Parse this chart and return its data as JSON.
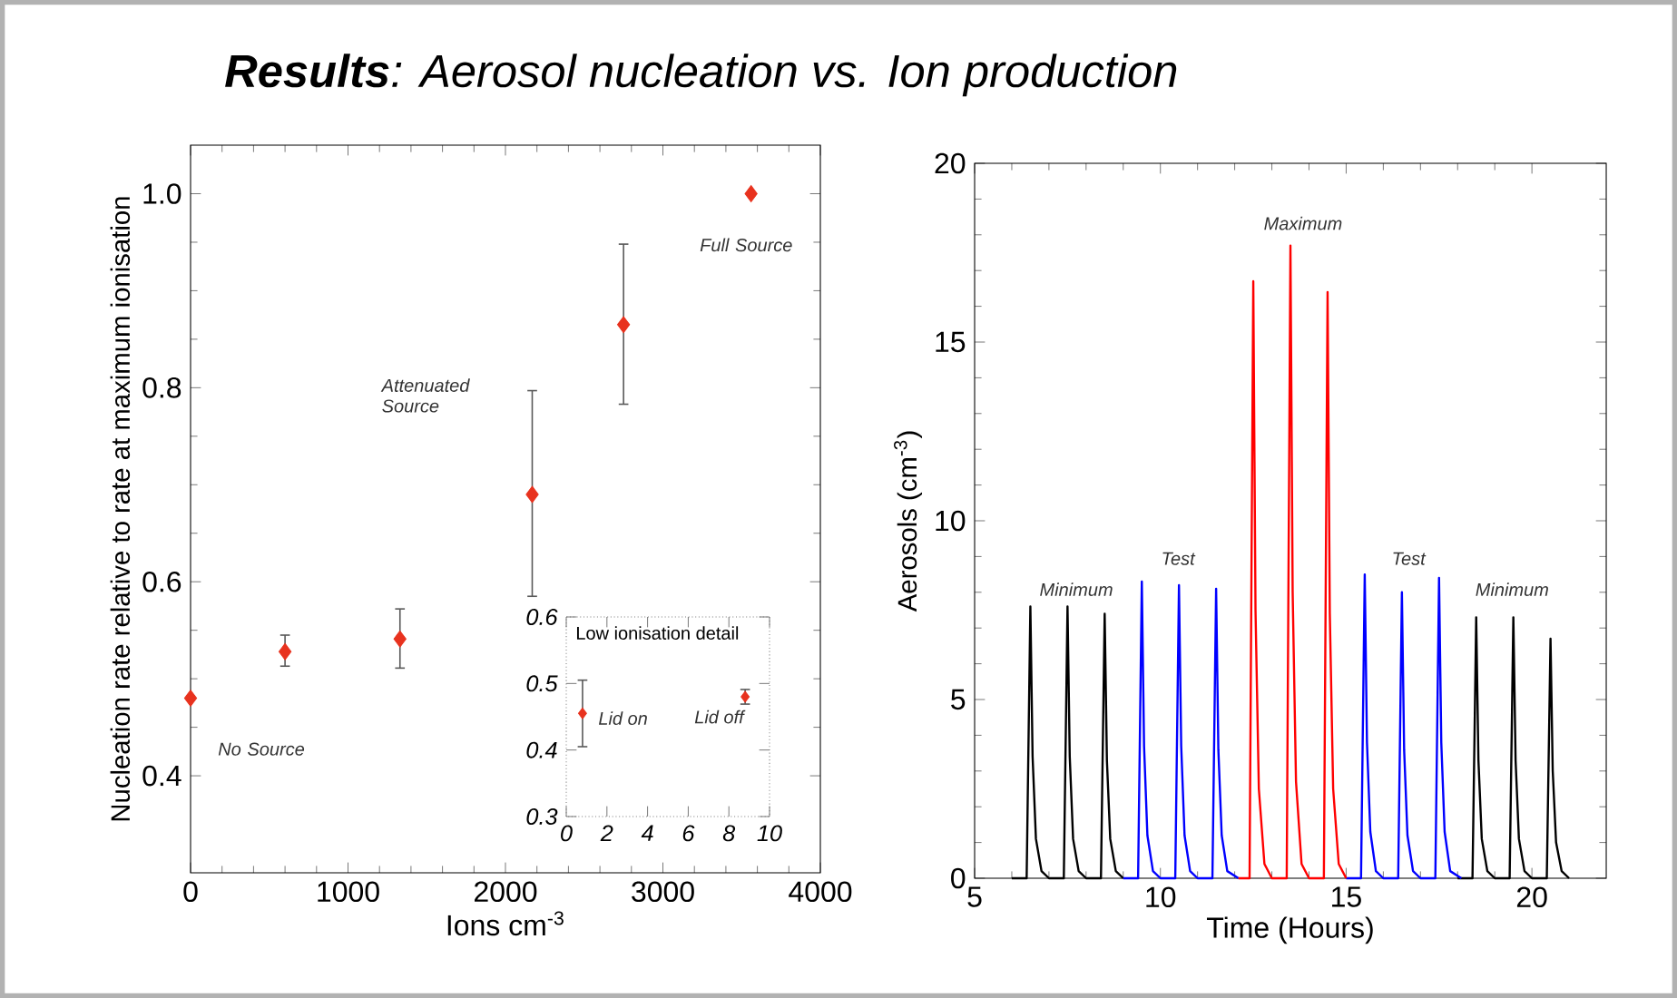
{
  "chart_data": [
    {
      "type": "scatter",
      "title": "**Results**: Aerosol nucleation vs. Ion production",
      "xlabel": "Ions cm$^{-3}$",
      "ylabel": "Nucleation rate relative to rate at maximum ionisation",
      "xlim": [
        0,
        4000
      ],
      "xticks": [
        0,
        1000,
        2000,
        3000,
        4000
      ],
      "ylim": [
        0.3,
        1.05
      ],
      "yticks": [
        {
          "value": 0.4,
          "label": "0.4"
        },
        {
          "value": 0.6,
          "label": "0.6"
        },
        {
          "value": 0.8,
          "label": "0.8"
        },
        {
          "value": 1.0,
          "label": "1.0"
        }
      ],
      "marker": "diamond",
      "series": [
        {
          "color": "#e8321e",
          "x": [
            0,
            600,
            1330,
            2170,
            2750
          ],
          "values": [
            0.48,
            0.528,
            0.541,
            0.69,
            0.865
          ],
          "errors": [
            null,
            [
              0.513,
              0.545
            ],
            [
              0.511,
              0.572
            ],
            [
              0.585,
              0.797
            ],
            [
              0.783,
              0.948
            ]
          ]
        },
        {
          "color": "#e8321e",
          "x": [
            3560
          ],
          "values": [
            1.0
          ]
        }
      ],
      "annotations": [
        "No Source",
        "Attenuated Source",
        "Full Source"
      ]
    },
    {
      "type": "scatter",
      "title": "Low ionisation detail",
      "xlim": [
        0,
        10
      ],
      "xticks": [
        0,
        2,
        4,
        6,
        8,
        10
      ],
      "ylim": [
        0.3,
        0.6
      ],
      "yticks": [
        0.3,
        0.4,
        0.5,
        0.6
      ],
      "marker": "diamond",
      "series": [
        {
          "color": "#e8321e",
          "x": [
            0.8,
            8.8
          ],
          "values": [
            0.455,
            0.48
          ],
          "errors": [
            [
              0.405,
              0.505
            ],
            [
              0.469,
              0.491
            ]
          ]
        }
      ],
      "annotations": [
        {
          "text": "Lid on",
          "x": 0.8,
          "y": 0.455
        },
        {
          "text": "Lid off",
          "x": 8.8,
          "y": 0.48
        }
      ]
    },
    {
      "type": "line",
      "xlabel": "Time (Hours)",
      "ylabel": "Aerosols (cm$^{-3}$)",
      "xlim": [
        5,
        22
      ],
      "xticks": [
        5,
        10,
        15,
        20
      ],
      "ylim": [
        0,
        20
      ],
      "yticks": [
        0,
        5,
        10,
        15,
        20
      ],
      "series": [
        {
          "color": "#000000",
          "x": [
            6.0,
            6.4,
            6.5,
            6.56,
            6.65,
            6.8,
            7.0,
            7.4,
            7.5,
            7.56,
            7.65,
            7.8,
            8.0,
            8.4,
            8.5,
            8.56,
            8.65,
            8.8,
            9.0,
            13.5,
            18.0,
            18.4,
            18.5,
            18.56,
            18.65,
            18.8,
            19.0,
            19.4,
            19.5,
            19.56,
            19.65,
            19.8,
            20.0,
            20.4,
            20.5,
            20.56,
            20.65,
            20.8,
            21.0
          ],
          "values": [
            0,
            0,
            7.6,
            3.4,
            1.1,
            0.2,
            0,
            0,
            7.6,
            3.4,
            1.1,
            0.2,
            0,
            0,
            7.4,
            3.3,
            1.1,
            0.2,
            0,
            null,
            0,
            0,
            7.3,
            3.3,
            1.1,
            0.2,
            0,
            0,
            7.3,
            3.3,
            1.1,
            0.2,
            0,
            0,
            6.7,
            3.0,
            1.0,
            0.2,
            0
          ]
        },
        {
          "color": "#0000ff",
          "x": [
            9.0,
            9.4,
            9.5,
            9.56,
            9.65,
            9.8,
            10.0,
            10.4,
            10.5,
            10.56,
            10.65,
            10.8,
            11.0,
            11.4,
            11.5,
            11.56,
            11.65,
            11.8,
            12.1,
            13.5,
            15.0,
            15.4,
            15.5,
            15.56,
            15.65,
            15.8,
            16.0,
            16.4,
            16.5,
            16.56,
            16.65,
            16.8,
            17.0,
            17.4,
            17.5,
            17.56,
            17.65,
            17.8,
            18.1
          ],
          "values": [
            0,
            0,
            8.3,
            3.7,
            1.2,
            0.2,
            0,
            0,
            8.2,
            3.7,
            1.2,
            0.2,
            0,
            0,
            8.1,
            3.6,
            1.2,
            0.2,
            0,
            null,
            0,
            0,
            8.5,
            3.8,
            1.3,
            0.2,
            0,
            0,
            8.0,
            3.6,
            1.2,
            0.2,
            0,
            0,
            8.4,
            3.8,
            1.3,
            0.2,
            0
          ]
        },
        {
          "color": "#ff0000",
          "x": [
            12.1,
            12.4,
            12.5,
            12.56,
            12.65,
            12.8,
            13.0,
            13.4,
            13.5,
            13.56,
            13.65,
            13.8,
            14.0,
            14.4,
            14.5,
            14.56,
            14.65,
            14.8,
            15.0
          ],
          "values": [
            0,
            0,
            16.7,
            7.5,
            2.5,
            0.4,
            0,
            0,
            17.7,
            8.0,
            2.7,
            0.4,
            0,
            0,
            16.4,
            7.4,
            2.5,
            0.4,
            0
          ]
        }
      ],
      "annotations": [
        "Minimum",
        "Test",
        "Maximum",
        "Test",
        "Minimum"
      ]
    }
  ]
}
